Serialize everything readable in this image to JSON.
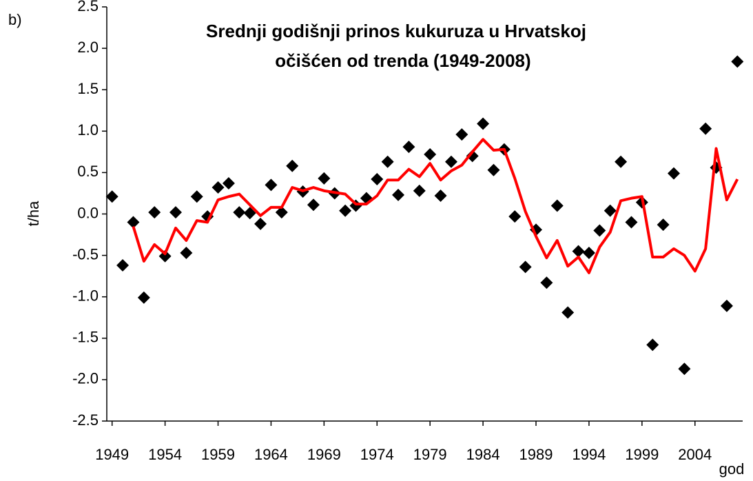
{
  "chart_data": {
    "type": "scatter",
    "panel_label": "b)",
    "title": [
      "Srednji godišnji prinos kukuruza u Hrvatskoj",
      "očišćen od trenda (1949-2008)"
    ],
    "ylabel": "t/ha",
    "xlabel": "god",
    "x": [
      1949,
      1950,
      1951,
      1952,
      1953,
      1954,
      1955,
      1956,
      1957,
      1958,
      1959,
      1960,
      1961,
      1962,
      1963,
      1964,
      1965,
      1966,
      1967,
      1968,
      1969,
      1970,
      1971,
      1972,
      1973,
      1974,
      1975,
      1976,
      1977,
      1978,
      1979,
      1980,
      1981,
      1982,
      1983,
      1984,
      1985,
      1986,
      1987,
      1988,
      1989,
      1990,
      1991,
      1992,
      1993,
      1994,
      1995,
      1996,
      1997,
      1998,
      1999,
      2000,
      2001,
      2002,
      2003,
      2004,
      2005,
      2006,
      2007,
      2008
    ],
    "series": [
      {
        "kind": "points",
        "color": "#000000",
        "values": [
          0.21,
          -0.62,
          -0.1,
          -1.01,
          0.02,
          -0.51,
          0.02,
          -0.47,
          0.21,
          -0.03,
          0.32,
          0.37,
          0.02,
          0.01,
          -0.12,
          0.35,
          0.02,
          0.58,
          0.27,
          0.11,
          0.43,
          0.25,
          0.04,
          0.1,
          0.19,
          0.42,
          0.63,
          0.23,
          0.81,
          0.28,
          0.72,
          0.22,
          0.63,
          0.96,
          0.7,
          1.09,
          0.53,
          0.78,
          -0.03,
          -0.64,
          -0.19,
          -0.83,
          0.1,
          -1.19,
          -0.45,
          -0.47,
          -0.2,
          0.04,
          0.63,
          -0.1,
          0.14,
          -1.58,
          -0.13,
          0.49,
          -1.87,
          null,
          1.03,
          0.56,
          -1.11,
          1.84
        ]
      },
      {
        "kind": "line",
        "color": "#ff0000",
        "values": [
          null,
          null,
          -0.15,
          -0.57,
          -0.37,
          -0.48,
          -0.17,
          -0.32,
          -0.08,
          -0.1,
          0.17,
          0.21,
          0.24,
          0.11,
          -0.02,
          0.08,
          0.08,
          0.32,
          0.28,
          0.32,
          0.28,
          0.26,
          0.24,
          0.12,
          0.12,
          0.22,
          0.41,
          0.41,
          0.54,
          0.45,
          0.61,
          0.41,
          0.52,
          0.59,
          0.75,
          0.9,
          0.77,
          0.78,
          0.43,
          0.03,
          -0.27,
          -0.53,
          -0.32,
          -0.63,
          -0.52,
          -0.71,
          -0.4,
          -0.22,
          0.16,
          0.19,
          0.21,
          -0.52,
          -0.52,
          -0.42,
          -0.5,
          -0.69,
          -0.42,
          0.79,
          0.17,
          0.42
        ]
      }
    ],
    "xlim": [
      1948.5,
      2008.5
    ],
    "xticks": [
      1949,
      1954,
      1959,
      1964,
      1969,
      1974,
      1979,
      1984,
      1989,
      1994,
      1999,
      2004
    ],
    "ylim": [
      -2.5,
      2.5
    ],
    "yticks": [
      -2.5,
      {
        "value": -2,
        "label": "-2.0"
      },
      -1.5,
      {
        "value": -1,
        "label": "-1.0"
      },
      -0.5,
      {
        "value": 0,
        "label": "0.0"
      },
      0.5,
      {
        "value": 1,
        "label": "1.0"
      },
      1.5,
      {
        "value": 2,
        "label": "2.0"
      },
      2.5
    ]
  }
}
